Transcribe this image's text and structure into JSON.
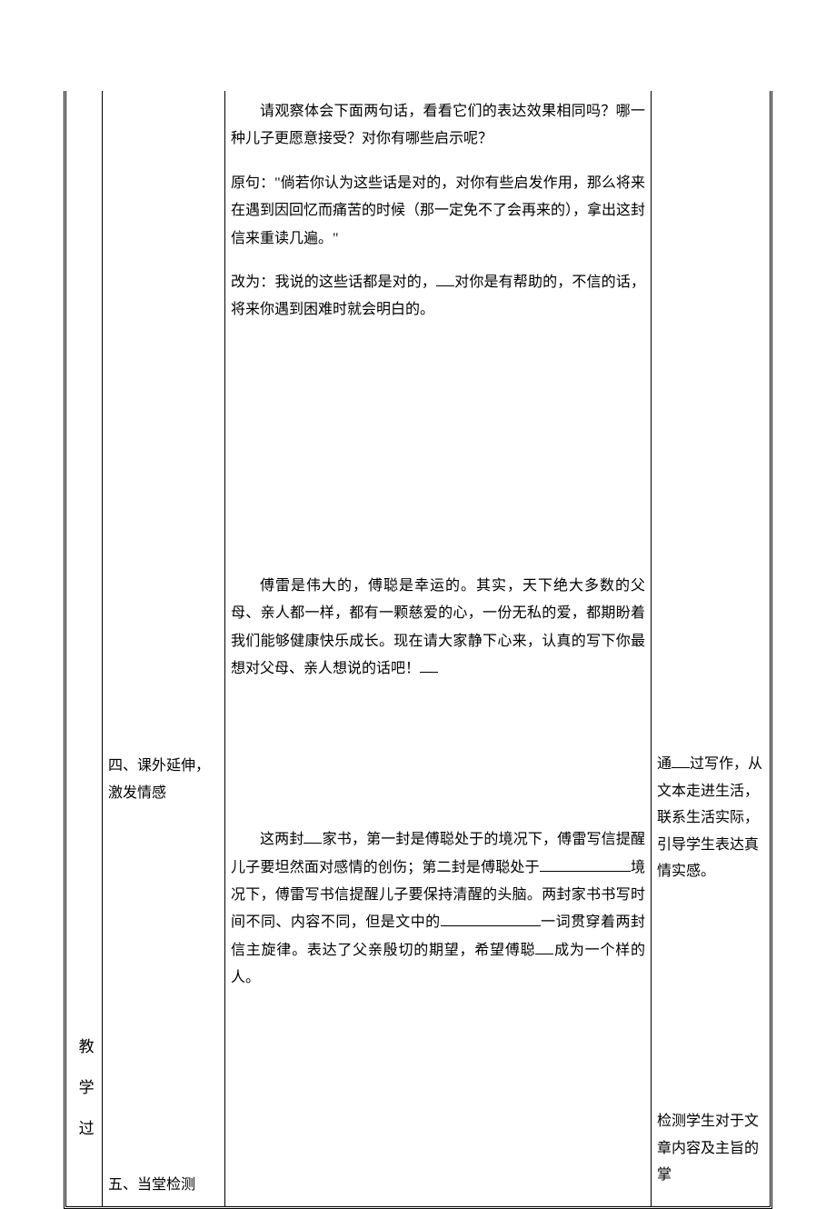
{
  "col1": {
    "vertical_text": "教学过"
  },
  "col2": {
    "section4": "四、课外延伸，激发情感",
    "section5": "五、当堂检测"
  },
  "col3": {
    "block1": {
      "intro": "请观察体会下面两句话，看看它们的表达效果相同吗？哪一种儿子更愿意接受？对你有哪些启示呢？",
      "original_label": "原句：",
      "original_text": "\"倘若你认为这些话是对的，对你有些启发作用，那么将来在遇到因回忆而痛苦的时候（那一定免不了会再来的），拿出这封信来重读几遍。\"",
      "revised_label": "改为：我说的这些话都是对的，",
      "revised_text": "对你是有帮助的，不信的话，将来你遇到困难时就会明白的。"
    },
    "block2": {
      "text": "傅雷是伟大的，傅聪是幸运的。其实，天下绝大多数的父母、亲人都一样，都有一颗慈爱的心，一份无私的爱，都期盼着我们能够健康快乐成长。现在请大家静下心来，认真的写下你最想对父母、亲人想说的话吧！"
    },
    "block3": {
      "part1": "这两封",
      "part2": "家书，第一封是傅聪处于的境况下，傅雷写信提醒儿子要坦然面对感情的创伤；第二封是傅聪处于",
      "part3": "境况下，傅雷写书信提醒儿子要保持清醒的头脑。两封家书书写时间不同、内容不同，但是文中的",
      "part4": "一词贯穿着两封信主旋律。表达了父亲殷切的期望，希望傅聪",
      "part5": "成为一个样的人。"
    }
  },
  "col4": {
    "note1_part1": "通",
    "note1_part2": "过写作，从文本走进生活，联系生活实际，引导学生表达真情实感。",
    "note2": "检测学生对于文章内容及主旨的掌"
  },
  "styling": {
    "background_color": "#ffffff",
    "text_color": "#000000",
    "border_color": "#000000",
    "font_family": "SimSun",
    "base_font_size": 16,
    "line_height": 1.9,
    "table_border": "3px double"
  }
}
